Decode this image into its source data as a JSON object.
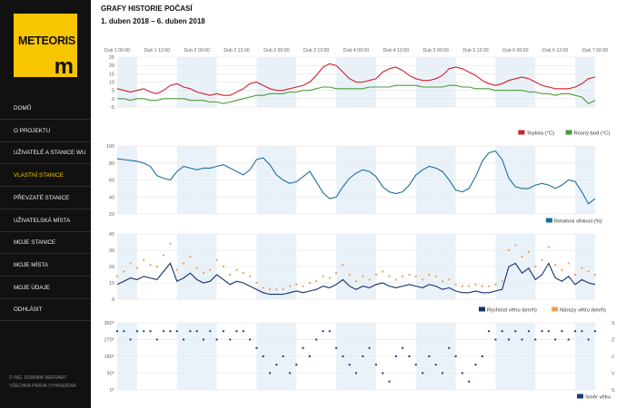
{
  "logo": {
    "text": "METEORIS",
    "mark": "m"
  },
  "nav": [
    {
      "label": "DOMŮ",
      "active": false
    },
    {
      "label": "O PROJEKTU",
      "active": false
    },
    {
      "label": "UŽIVATELÉ A STANICE WU",
      "active": false
    },
    {
      "label": "VLASTNÍ STANICE",
      "active": true
    },
    {
      "label": "PŘEVZATÉ STANICE",
      "active": false
    },
    {
      "label": "UŽIVATELSKÁ MÍSTA",
      "active": false
    },
    {
      "label": "MOJE STANICE",
      "active": false
    },
    {
      "label": "MOJE MÍSTA",
      "active": false
    },
    {
      "label": "MOJE ÚDAJE",
      "active": false
    },
    {
      "label": "ODHLÁSIT",
      "active": false
    }
  ],
  "footer": {
    "line1": "© ING. DOMINIK MERVART",
    "line2": "VŠECHNA PRÁVA VYHRAZENA"
  },
  "page": {
    "title": "GRAFY HISTORIE POČASÍ",
    "subtitle": "1. duben 2018 – 6. duben 2018"
  },
  "colors": {
    "accent": "#f7c600",
    "sidebar": "#111111",
    "temp": "#d0202f",
    "dew": "#4a9b3a",
    "humidity": "#1a6fa0",
    "wind": "#14306e",
    "gust": "#f2a05a",
    "direction": "#1c3a8a"
  },
  "x_axis": {
    "ticks": [
      "Dub 1 00:00",
      "Dub 1 12:00",
      "Dub 2 00:00",
      "Dub 2 12:00",
      "Dub 3 00:00",
      "Dub 3 12:00",
      "Dub 4 00:00",
      "Dub 4 12:00",
      "Dub 5 00:00",
      "Dub 5 12:00",
      "Dub 6 00:00",
      "Dub 6 12:00",
      "Dub 7 00:00"
    ]
  },
  "chart_data": [
    {
      "type": "line",
      "ylim": [
        -5,
        25
      ],
      "yticks": [
        "25",
        "20",
        "15",
        "10",
        "5",
        "0",
        "-5"
      ],
      "series": [
        {
          "name": "Teplota (°C)",
          "x": [
            0,
            2,
            4,
            6,
            8,
            10,
            12,
            14,
            16,
            18,
            20,
            22,
            24,
            26,
            28,
            30,
            32,
            34,
            36,
            38,
            40,
            42,
            44,
            46,
            48,
            50,
            52,
            54,
            56,
            58,
            60,
            62,
            64,
            66,
            68,
            70,
            72,
            74,
            76,
            78,
            80,
            82,
            84,
            86,
            88,
            90,
            92,
            94,
            96,
            98,
            100,
            102,
            104,
            106,
            108,
            110,
            112,
            114,
            116,
            118,
            120,
            122,
            124,
            126,
            128,
            130,
            132,
            134,
            136,
            138,
            140,
            142,
            144
          ],
          "values": [
            6,
            5,
            4,
            5,
            6,
            4,
            3,
            5,
            8,
            9,
            7,
            6,
            4,
            3,
            2,
            3,
            2,
            2,
            4,
            6,
            9,
            10,
            8,
            6,
            5,
            5,
            6,
            7,
            8,
            10,
            14,
            19,
            21,
            20,
            16,
            12,
            10,
            10,
            11,
            12,
            16,
            18,
            19,
            17,
            14,
            12,
            11,
            11,
            12,
            14,
            18,
            19,
            18,
            16,
            14,
            11,
            9,
            8,
            9,
            11,
            12,
            13,
            12,
            10,
            8,
            7,
            6,
            6,
            6,
            7,
            9,
            12,
            13
          ]
        },
        {
          "name": "Rosný bod (°C)",
          "x": [
            0,
            2,
            4,
            6,
            8,
            10,
            12,
            14,
            16,
            18,
            20,
            22,
            24,
            26,
            28,
            30,
            32,
            34,
            36,
            38,
            40,
            42,
            44,
            46,
            48,
            50,
            52,
            54,
            56,
            58,
            60,
            62,
            64,
            66,
            68,
            70,
            72,
            74,
            76,
            78,
            80,
            82,
            84,
            86,
            88,
            90,
            92,
            94,
            96,
            98,
            100,
            102,
            104,
            106,
            108,
            110,
            112,
            114,
            116,
            118,
            120,
            122,
            124,
            126,
            128,
            130,
            132,
            134,
            136,
            138,
            140,
            142,
            144
          ],
          "values": [
            0,
            0,
            -1,
            0,
            0,
            -1,
            -1,
            0,
            0,
            0,
            0,
            -1,
            -1,
            -1,
            -2,
            -2,
            -3,
            -2,
            -1,
            0,
            1,
            2,
            2,
            3,
            3,
            3,
            4,
            4,
            5,
            5,
            6,
            7,
            7,
            6,
            6,
            6,
            6,
            6,
            7,
            7,
            7,
            7,
            8,
            8,
            8,
            8,
            7,
            7,
            7,
            7,
            8,
            8,
            7,
            7,
            6,
            6,
            6,
            5,
            5,
            5,
            5,
            5,
            4,
            4,
            3,
            3,
            2,
            3,
            3,
            2,
            1,
            -3,
            -1
          ]
        }
      ],
      "legend": [
        "Teplota (°C)",
        "Rosný bod (°C)"
      ]
    },
    {
      "type": "line",
      "ylim": [
        20,
        100
      ],
      "yticks": [
        "100",
        "80",
        "60",
        "40",
        "20"
      ],
      "series": [
        {
          "name": "Relativní vlhkost (%)",
          "x": [
            0,
            2,
            4,
            6,
            8,
            10,
            12,
            14,
            16,
            18,
            20,
            22,
            24,
            26,
            28,
            30,
            32,
            34,
            36,
            38,
            40,
            42,
            44,
            46,
            48,
            50,
            52,
            54,
            56,
            58,
            60,
            62,
            64,
            66,
            68,
            70,
            72,
            74,
            76,
            78,
            80,
            82,
            84,
            86,
            88,
            90,
            92,
            94,
            96,
            98,
            100,
            102,
            104,
            106,
            108,
            110,
            112,
            114,
            116,
            118,
            120,
            122,
            124,
            126,
            128,
            130,
            132,
            134,
            136,
            138,
            140,
            142,
            144
          ],
          "values": [
            85,
            84,
            83,
            82,
            80,
            76,
            65,
            62,
            60,
            70,
            76,
            74,
            72,
            74,
            74,
            76,
            78,
            74,
            70,
            66,
            72,
            84,
            86,
            78,
            66,
            60,
            56,
            58,
            64,
            70,
            58,
            45,
            38,
            40,
            52,
            62,
            68,
            72,
            70,
            64,
            52,
            46,
            44,
            46,
            54,
            66,
            72,
            76,
            74,
            70,
            60,
            48,
            46,
            50,
            64,
            82,
            92,
            94,
            84,
            62,
            52,
            50,
            50,
            54,
            56,
            54,
            50,
            54,
            60,
            58,
            46,
            32,
            38
          ]
        }
      ],
      "legend": [
        "Relativní vlhkost (%)"
      ]
    },
    {
      "type": "line",
      "ylim": [
        0,
        40
      ],
      "yticks": [
        "40",
        "30",
        "20",
        "10",
        "0"
      ],
      "series": [
        {
          "name": "Rychlost větru (km/h)",
          "x": [
            0,
            2,
            4,
            6,
            8,
            10,
            12,
            14,
            16,
            18,
            20,
            22,
            24,
            26,
            28,
            30,
            32,
            34,
            36,
            38,
            40,
            42,
            44,
            46,
            48,
            50,
            52,
            54,
            56,
            58,
            60,
            62,
            64,
            66,
            68,
            70,
            72,
            74,
            76,
            78,
            80,
            82,
            84,
            86,
            88,
            90,
            92,
            94,
            96,
            98,
            100,
            102,
            104,
            106,
            108,
            110,
            112,
            114,
            116,
            118,
            120,
            122,
            124,
            126,
            128,
            130,
            132,
            134,
            136,
            138,
            140,
            142,
            144
          ],
          "values": [
            9,
            11,
            13,
            12,
            14,
            13,
            12,
            17,
            22,
            11,
            13,
            16,
            12,
            10,
            11,
            15,
            12,
            9,
            11,
            10,
            8,
            6,
            4,
            3,
            3,
            3,
            4,
            5,
            4,
            5,
            6,
            8,
            7,
            9,
            12,
            8,
            6,
            8,
            7,
            9,
            10,
            8,
            7,
            8,
            9,
            8,
            7,
            9,
            8,
            6,
            7,
            5,
            4,
            4,
            5,
            4,
            4,
            5,
            6,
            20,
            22,
            16,
            19,
            12,
            15,
            22,
            13,
            11,
            14,
            9,
            12,
            10,
            9
          ]
        },
        {
          "name": "Nárazy větru (km/h)",
          "x": [
            0,
            2,
            4,
            6,
            8,
            10,
            12,
            14,
            16,
            18,
            20,
            22,
            24,
            26,
            28,
            30,
            32,
            34,
            36,
            38,
            40,
            42,
            44,
            46,
            48,
            50,
            52,
            54,
            56,
            58,
            60,
            62,
            64,
            66,
            68,
            70,
            72,
            74,
            76,
            78,
            80,
            82,
            84,
            86,
            88,
            90,
            92,
            94,
            96,
            98,
            100,
            102,
            104,
            106,
            108,
            110,
            112,
            114,
            116,
            118,
            120,
            122,
            124,
            126,
            128,
            130,
            132,
            134,
            136,
            138,
            140,
            142,
            144
          ],
          "values": [
            14,
            17,
            22,
            19,
            24,
            21,
            20,
            27,
            34,
            18,
            22,
            26,
            19,
            16,
            18,
            24,
            20,
            15,
            18,
            16,
            14,
            10,
            7,
            6,
            6,
            6,
            8,
            9,
            8,
            10,
            11,
            14,
            13,
            16,
            21,
            15,
            11,
            14,
            12,
            15,
            17,
            14,
            12,
            14,
            15,
            14,
            12,
            15,
            14,
            11,
            12,
            9,
            8,
            8,
            9,
            8,
            8,
            9,
            11,
            30,
            33,
            26,
            29,
            20,
            24,
            32,
            21,
            18,
            22,
            15,
            19,
            17,
            15
          ]
        }
      ],
      "legend": [
        "Rychlost větru (km/h)",
        "Nárazy větru (km/h)"
      ]
    },
    {
      "type": "scatter",
      "ylim": [
        0,
        360
      ],
      "yticks": [
        "360°",
        "270°",
        "180°",
        "90°",
        "0°"
      ],
      "right_ticks": [
        "S",
        "Z",
        "J",
        "V",
        "S"
      ],
      "series": [
        {
          "name": "Směr větru",
          "x": [
            0,
            2,
            4,
            6,
            8,
            10,
            12,
            14,
            16,
            18,
            20,
            22,
            24,
            26,
            28,
            30,
            32,
            34,
            36,
            38,
            40,
            42,
            44,
            46,
            48,
            50,
            52,
            54,
            56,
            58,
            60,
            62,
            64,
            66,
            68,
            70,
            72,
            74,
            76,
            78,
            80,
            82,
            84,
            86,
            88,
            90,
            92,
            94,
            96,
            98,
            100,
            102,
            104,
            106,
            108,
            110,
            112,
            114,
            116,
            118,
            120,
            122,
            124,
            126,
            128,
            130,
            132,
            134,
            136,
            138,
            140,
            142,
            144
          ],
          "values": [
            315,
            315,
            270,
            315,
            315,
            315,
            270,
            315,
            315,
            315,
            270,
            315,
            315,
            270,
            315,
            270,
            315,
            270,
            315,
            315,
            270,
            225,
            180,
            90,
            135,
            180,
            90,
            135,
            225,
            180,
            270,
            315,
            315,
            225,
            180,
            135,
            90,
            180,
            225,
            135,
            90,
            45,
            180,
            225,
            180,
            135,
            90,
            180,
            135,
            90,
            225,
            180,
            90,
            45,
            135,
            180,
            315,
            270,
            315,
            270,
            315,
            270,
            315,
            270,
            315,
            315,
            270,
            315,
            270,
            315,
            315,
            270,
            315
          ]
        }
      ],
      "legend": [
        "Směr větru"
      ]
    }
  ]
}
